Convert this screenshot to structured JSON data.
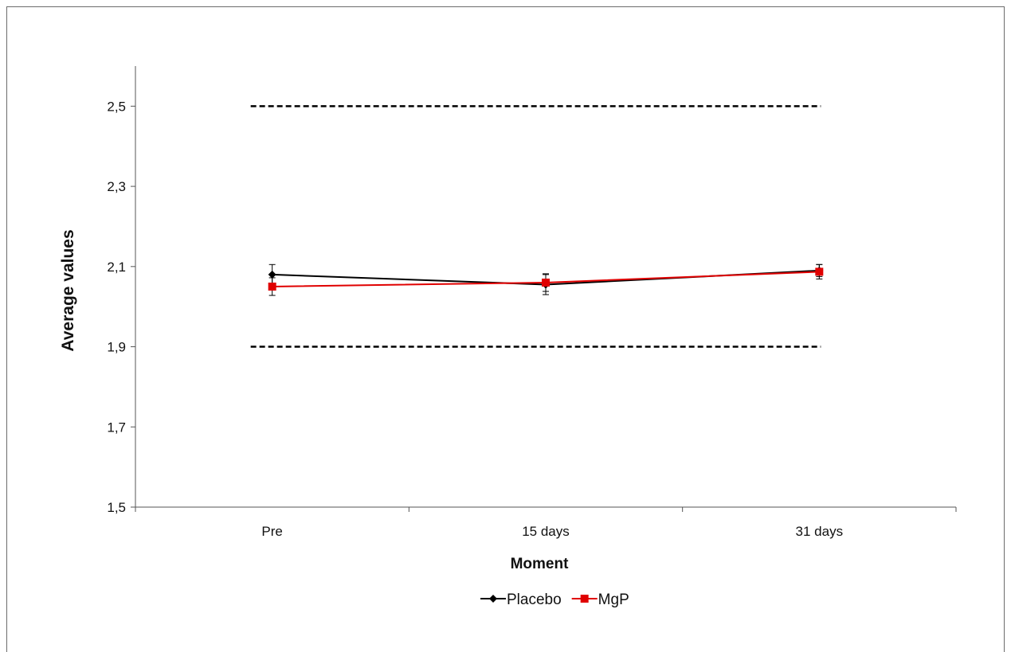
{
  "chart_data": {
    "type": "line",
    "title": "",
    "xlabel": "Moment",
    "ylabel": "Average values",
    "categories": [
      "Pre",
      "15 days",
      "31 days"
    ],
    "ylim": [
      1.5,
      2.6
    ],
    "yticks": [
      1.5,
      1.7,
      1.9,
      2.1,
      2.3,
      2.5
    ],
    "ytick_labels": [
      "1,5",
      "1,7",
      "1,9",
      "2,1",
      "2,3",
      "2,5"
    ],
    "grid": false,
    "legend_position": "bottom",
    "reference_lines": [
      {
        "y": 2.5,
        "style": "dashed",
        "color": "#000000"
      },
      {
        "y": 1.9,
        "style": "dashed",
        "color": "#000000"
      }
    ],
    "series": [
      {
        "name": "Placebo",
        "color": "#000000",
        "marker": "diamond",
        "values": [
          2.08,
          2.055,
          2.09
        ],
        "error": [
          0.025,
          0.025,
          0.015
        ]
      },
      {
        "name": "MgP",
        "color": "#e00000",
        "marker": "square",
        "values": [
          2.05,
          2.06,
          2.087
        ],
        "error": [
          0.022,
          0.022,
          0.018
        ]
      }
    ]
  }
}
